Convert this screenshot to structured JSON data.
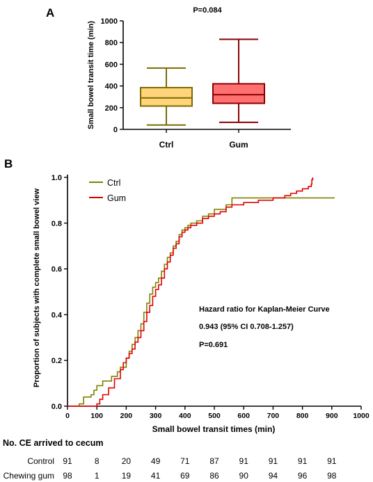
{
  "panel_a": {
    "label": "A",
    "pvalue": "P=0.084",
    "ylabel": "Small bowel transit time (min)"
  },
  "panel_b": {
    "label": "B",
    "xlabel": "Small bowel transit times (min)",
    "ylabel": "Proportion of subjects with complete small bowel view",
    "annotation": {
      "title": "Hazard ratio for Kaplan-Meier Curve",
      "hr": "0.943 (95% CI 0.708-1.257)",
      "p": "P=0.691"
    }
  },
  "risk_table": {
    "title": "No. CE arrived to cecum",
    "rows": [
      {
        "label": "Control",
        "values": [
          "91",
          "8",
          "20",
          "49",
          "71",
          "87",
          "91",
          "91",
          "91",
          "91"
        ]
      },
      {
        "label": "Chewing gum",
        "values": [
          "98",
          "1",
          "19",
          "41",
          "69",
          "86",
          "90",
          "94",
          "96",
          "98"
        ]
      }
    ]
  },
  "colors": {
    "ctrl_line": "#808000",
    "gum_line": "#e00000",
    "ctrl_box_fill": "#ffd47a",
    "ctrl_box_edge": "#7a6a00",
    "gum_box_fill": "#ff7070",
    "gum_box_edge": "#8b0000"
  },
  "chart_data": [
    {
      "type": "box",
      "categories": [
        "Ctrl",
        "Gum"
      ],
      "ylim": [
        0,
        1000
      ],
      "yticks": [
        "0",
        "200",
        "400",
        "600",
        "800",
        "1000"
      ],
      "boxes": [
        {
          "name": "Ctrl",
          "min": 40,
          "q1": 215,
          "median": 290,
          "q3": 385,
          "max": 565
        },
        {
          "name": "Gum",
          "min": 65,
          "q1": 240,
          "median": 320,
          "q3": 420,
          "max": 830
        }
      ]
    },
    {
      "type": "line",
      "subtype": "kaplan-meier step",
      "xlim": [
        0,
        1000
      ],
      "ylim": [
        0,
        1.0
      ],
      "xticks": [
        "0",
        "100",
        "200",
        "300",
        "400",
        "500",
        "600",
        "700",
        "800",
        "900",
        "1000"
      ],
      "yticks": [
        "0.0",
        "0.2",
        "0.4",
        "0.6",
        "0.8",
        "1.0"
      ],
      "series": [
        {
          "name": "Ctrl",
          "x": [
            0,
            40,
            55,
            80,
            90,
            100,
            120,
            150,
            170,
            180,
            200,
            210,
            220,
            230,
            240,
            250,
            260,
            270,
            280,
            290,
            300,
            310,
            320,
            330,
            340,
            350,
            360,
            370,
            380,
            390,
            400,
            410,
            420,
            440,
            460,
            480,
            500,
            520,
            540,
            560,
            620,
            700,
            910
          ],
          "y": [
            0,
            0.01,
            0.04,
            0.05,
            0.07,
            0.09,
            0.11,
            0.13,
            0.15,
            0.17,
            0.21,
            0.24,
            0.27,
            0.3,
            0.33,
            0.36,
            0.41,
            0.45,
            0.49,
            0.52,
            0.54,
            0.56,
            0.59,
            0.62,
            0.65,
            0.67,
            0.7,
            0.72,
            0.75,
            0.77,
            0.78,
            0.79,
            0.8,
            0.81,
            0.83,
            0.84,
            0.86,
            0.86,
            0.88,
            0.91,
            0.91,
            0.91,
            0.91
          ]
        },
        {
          "name": "Gum",
          "x": [
            0,
            100,
            110,
            120,
            140,
            160,
            180,
            190,
            200,
            210,
            220,
            230,
            240,
            250,
            260,
            270,
            280,
            290,
            300,
            310,
            320,
            330,
            340,
            350,
            360,
            370,
            380,
            390,
            400,
            410,
            420,
            440,
            460,
            480,
            500,
            520,
            540,
            560,
            600,
            650,
            700,
            740,
            760,
            780,
            800,
            820,
            830,
            832,
            835
          ],
          "y": [
            0,
            0.01,
            0.03,
            0.05,
            0.08,
            0.12,
            0.16,
            0.19,
            0.21,
            0.23,
            0.25,
            0.28,
            0.3,
            0.33,
            0.37,
            0.41,
            0.44,
            0.48,
            0.51,
            0.53,
            0.56,
            0.6,
            0.63,
            0.66,
            0.69,
            0.71,
            0.74,
            0.76,
            0.77,
            0.78,
            0.79,
            0.8,
            0.82,
            0.83,
            0.84,
            0.85,
            0.87,
            0.88,
            0.89,
            0.9,
            0.91,
            0.92,
            0.93,
            0.94,
            0.95,
            0.96,
            0.97,
            0.99,
            1.0
          ]
        }
      ]
    }
  ]
}
